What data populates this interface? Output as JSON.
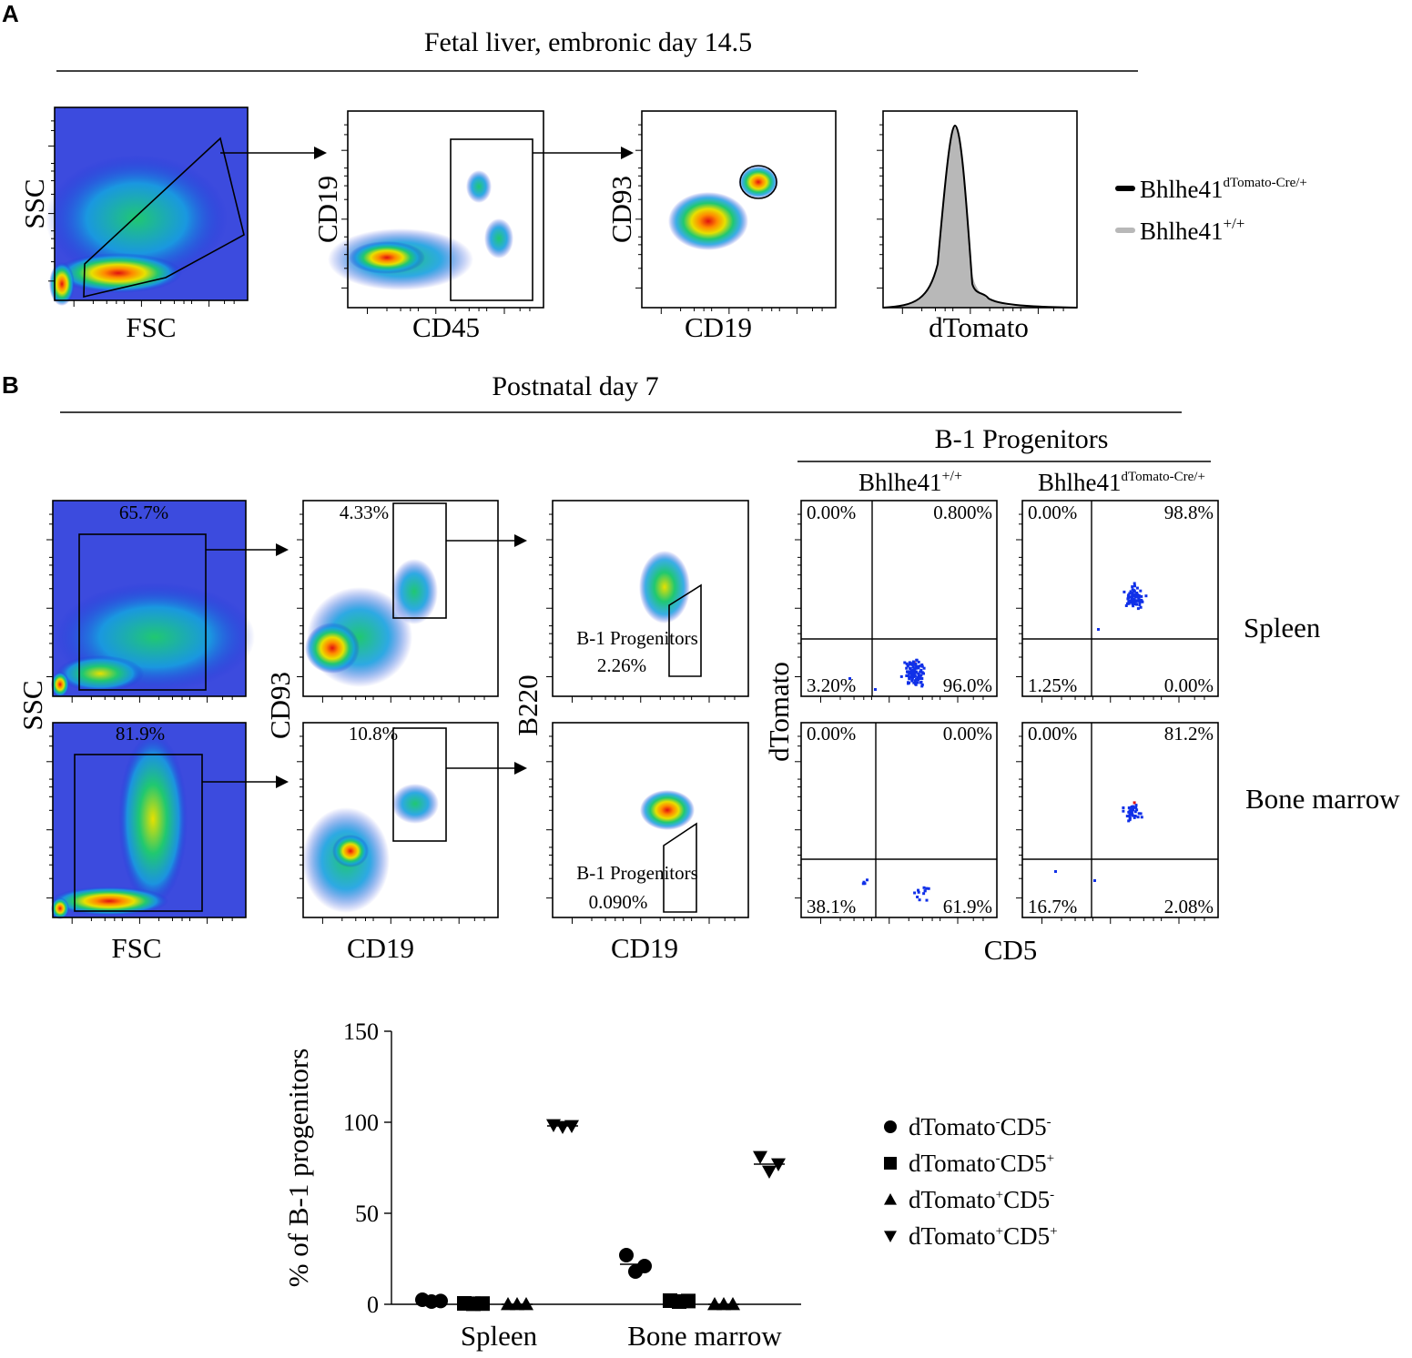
{
  "panelA": {
    "label": "A",
    "title": "Fetal liver, embronic day 14.5",
    "plots": [
      {
        "x_label": "FSC",
        "y_label": "SSC"
      },
      {
        "x_label": "CD45",
        "y_label": "CD19"
      },
      {
        "x_label": "CD19",
        "y_label": "CD93"
      },
      {
        "x_label": "dTomato",
        "y_label": ""
      }
    ],
    "legend": [
      {
        "base": "Bhlhe41",
        "sup": "dTomato-Cre/+",
        "color": "#000000"
      },
      {
        "base": "Bhlhe41",
        "sup": "+/+",
        "color": "#b8b8b8"
      }
    ]
  },
  "panelB": {
    "label": "B",
    "title": "Postnatal day 7",
    "gating": {
      "row1": {
        "fsc_gate": "65.7%",
        "cd93_gate": "4.33%",
        "b1_label": "B-1 Progenitors",
        "b1_pct": "2.26%"
      },
      "row2": {
        "fsc_gate": "81.9%",
        "cd93_gate": "10.8%",
        "b1_label": "B-1 Progenitors",
        "b1_pct": "0.090%"
      },
      "x_labels": [
        "FSC",
        "CD19",
        "CD19"
      ],
      "y_labels": [
        "SSC",
        "CD93",
        "B220"
      ]
    },
    "quadrants": {
      "header": "B-1 Progenitors",
      "col1": {
        "base": "Bhlhe41",
        "sup": "+/+"
      },
      "col2": {
        "base": "Bhlhe41",
        "sup": "dTomato-Cre/+"
      },
      "y_label": "dTomato",
      "x_label": "CD5",
      "row_labels": [
        "Spleen",
        "Bone marrow"
      ],
      "spleen_wt": {
        "ul": "0.00%",
        "ur": "0.800%",
        "ll": "3.20%",
        "lr": "96.0%"
      },
      "spleen_het": {
        "ul": "0.00%",
        "ur": "98.8%",
        "ll": "1.25%",
        "lr": "0.00%"
      },
      "bm_wt": {
        "ul": "0.00%",
        "ur": "0.00%",
        "ll": "38.1%",
        "lr": "61.9%"
      },
      "bm_het": {
        "ul": "0.00%",
        "ur": "81.2%",
        "ll": "16.7%",
        "lr": "2.08%"
      }
    }
  },
  "chart_data": {
    "type": "scatter",
    "title": "",
    "ylabel": "% of B-1 progenitors",
    "xlabel": "",
    "ylim": [
      0,
      150
    ],
    "yticks": [
      0,
      50,
      100,
      150
    ],
    "categories": [
      "Spleen",
      "Bone marrow"
    ],
    "series": [
      {
        "name": "dTomato-CD5-",
        "base1": "dTomato",
        "sup1": "-",
        "base2": "CD5",
        "sup2": "-",
        "marker": "circle",
        "values": [
          [
            2.5,
            1.5,
            1.8
          ],
          [
            27,
            18,
            21
          ]
        ]
      },
      {
        "name": "dTomato-CD5+",
        "base1": "dTomato",
        "sup1": "-",
        "base2": "CD5",
        "sup2": "+",
        "marker": "square",
        "values": [
          [
            0.5,
            0.3,
            0.4
          ],
          [
            2.0,
            1.5,
            1.8
          ]
        ]
      },
      {
        "name": "dTomato+CD5-",
        "base1": "dTomato",
        "sup1": "+",
        "base2": "CD5",
        "sup2": "-",
        "marker": "triangle-up",
        "values": [
          [
            0,
            0,
            0
          ],
          [
            0,
            0,
            0
          ]
        ]
      },
      {
        "name": "dTomato+CD5+",
        "base1": "dTomato",
        "sup1": "+",
        "base2": "CD5",
        "sup2": "+",
        "marker": "triangle-down",
        "values": [
          [
            98.5,
            97.5,
            98
          ],
          [
            81,
            73,
            77
          ]
        ]
      }
    ]
  }
}
